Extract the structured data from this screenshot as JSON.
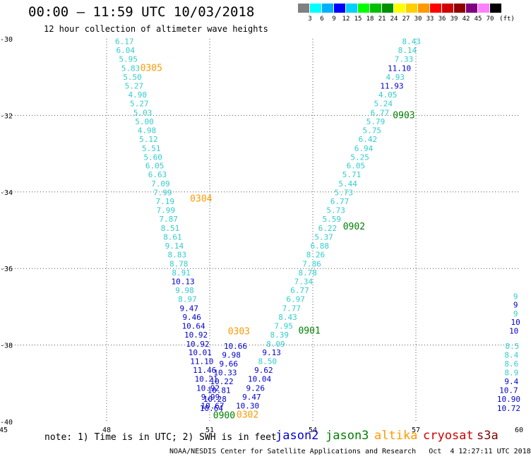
{
  "title": "00:00 – 11:59 UTC 10/03/2018",
  "subtitle": "12 hour collection of altimeter wave heights",
  "note": "note: 1) Time is in UTC; 2) SWH is in feet",
  "credits": "NOAA/NESDIS Center for Satellite Applications and Research   Oct  4 12:27:11 UTC 2018",
  "colors": {
    "jason2": "#0000d0",
    "jason2_light": "#33cccc",
    "jason3": "#008000",
    "altika": "#ff9900",
    "cryosat": "#cc0000",
    "s3a": "#800000"
  },
  "satellites": [
    {
      "name": "jason2",
      "color": "#0000d0"
    },
    {
      "name": "jason3",
      "color": "#008000"
    },
    {
      "name": "altika",
      "color": "#ff9900"
    },
    {
      "name": "cryosat",
      "color": "#cc0000"
    },
    {
      "name": "s3a",
      "color": "#800000"
    }
  ],
  "color_scale": {
    "unit": "(ft)",
    "labels": [
      "3",
      "6",
      "9",
      "12",
      "15",
      "18",
      "21",
      "24",
      "27",
      "30",
      "33",
      "36",
      "39",
      "42",
      "45",
      "70"
    ],
    "colors": [
      "#808080",
      "#00ffff",
      "#00b0ff",
      "#0000ff",
      "#00d0ff",
      "#00ff00",
      "#00c000",
      "#009000",
      "#ffff00",
      "#ffd000",
      "#ff9900",
      "#ff0000",
      "#d00000",
      "#900000",
      "#800080",
      "#ff80ff",
      "#000000"
    ]
  },
  "chart_data": {
    "type": "scatter",
    "xlim": [
      45,
      60
    ],
    "ylim": [
      -40,
      -30
    ],
    "x_ticks": [
      "45",
      "48",
      "51",
      "54",
      "57",
      "60"
    ],
    "y_ticks": [
      "-30",
      "-32",
      "-34",
      "-36",
      "-38",
      "-40"
    ],
    "grid": true,
    "tracks": [
      {
        "satellite": "jason2",
        "points": [
          {
            "x": 48.52,
            "y": -30.14,
            "v": "6.17",
            "c": "#33cccc"
          },
          {
            "x": 48.55,
            "y": -30.37,
            "v": "6.04",
            "c": "#33cccc"
          },
          {
            "x": 48.63,
            "y": -30.6,
            "v": "5.95",
            "c": "#33cccc"
          },
          {
            "x": 48.7,
            "y": -30.84,
            "v": "5.83",
            "c": "#33cccc"
          },
          {
            "x": 48.75,
            "y": -31.07,
            "v": "5.50",
            "c": "#33cccc"
          },
          {
            "x": 48.8,
            "y": -31.3,
            "v": "5.27",
            "c": "#33cccc"
          },
          {
            "x": 48.9,
            "y": -31.53,
            "v": "4.90",
            "c": "#33cccc"
          },
          {
            "x": 48.95,
            "y": -31.76,
            "v": "5.27",
            "c": "#33cccc"
          },
          {
            "x": 49.05,
            "y": -32.0,
            "v": "5.03",
            "c": "#33cccc"
          },
          {
            "x": 49.1,
            "y": -32.23,
            "v": "5.00",
            "c": "#33cccc"
          },
          {
            "x": 49.17,
            "y": -32.46,
            "v": "4.98",
            "c": "#33cccc"
          },
          {
            "x": 49.22,
            "y": -32.69,
            "v": "5.12",
            "c": "#33cccc"
          },
          {
            "x": 49.3,
            "y": -32.93,
            "v": "5.51",
            "c": "#33cccc"
          },
          {
            "x": 49.35,
            "y": -33.16,
            "v": "5.60",
            "c": "#33cccc"
          },
          {
            "x": 49.4,
            "y": -33.39,
            "v": "6.05",
            "c": "#33cccc"
          },
          {
            "x": 49.48,
            "y": -33.62,
            "v": "6.63",
            "c": "#33cccc"
          },
          {
            "x": 49.57,
            "y": -33.86,
            "v": "7.09",
            "c": "#33cccc"
          },
          {
            "x": 49.63,
            "y": -34.09,
            "v": "7.99",
            "c": "#33cccc"
          },
          {
            "x": 49.7,
            "y": -34.32,
            "v": "7.19",
            "c": "#33cccc"
          },
          {
            "x": 49.72,
            "y": -34.55,
            "v": "7.99",
            "c": "#33cccc"
          },
          {
            "x": 49.8,
            "y": -34.78,
            "v": "7.87",
            "c": "#33cccc"
          },
          {
            "x": 49.85,
            "y": -35.02,
            "v": "8.51",
            "c": "#33cccc"
          },
          {
            "x": 49.92,
            "y": -35.25,
            "v": "8.61",
            "c": "#33cccc"
          },
          {
            "x": 49.97,
            "y": -35.48,
            "v": "9.14",
            "c": "#33cccc"
          },
          {
            "x": 50.05,
            "y": -35.71,
            "v": "8.83",
            "c": "#33cccc"
          },
          {
            "x": 50.1,
            "y": -35.95,
            "v": "8.78",
            "c": "#33cccc"
          },
          {
            "x": 50.17,
            "y": -36.18,
            "v": "8.91",
            "c": "#33cccc"
          },
          {
            "x": 50.22,
            "y": -36.41,
            "v": "10.13",
            "c": "#0000d0"
          },
          {
            "x": 50.27,
            "y": -36.64,
            "v": "9.98",
            "c": "#33cccc"
          },
          {
            "x": 50.35,
            "y": -36.87,
            "v": "8.97",
            "c": "#33cccc"
          },
          {
            "x": 50.4,
            "y": -37.11,
            "v": "9.47",
            "c": "#0000d0"
          },
          {
            "x": 50.48,
            "y": -37.34,
            "v": "9.46",
            "c": "#0000d0"
          },
          {
            "x": 50.53,
            "y": -37.57,
            "v": "10.64",
            "c": "#0000d0"
          },
          {
            "x": 50.6,
            "y": -37.8,
            "v": "10.92",
            "c": "#0000d0"
          },
          {
            "x": 50.65,
            "y": -38.04,
            "v": "10.92",
            "c": "#0000d0"
          },
          {
            "x": 50.72,
            "y": -38.27,
            "v": "10.01",
            "c": "#0000d0"
          },
          {
            "x": 50.77,
            "y": -38.5,
            "v": "11.10",
            "c": "#0000d0"
          },
          {
            "x": 50.85,
            "y": -38.73,
            "v": "11.46",
            "c": "#0000d0"
          },
          {
            "x": 50.9,
            "y": -38.96,
            "v": "10.21",
            "c": "#0000d0"
          },
          {
            "x": 50.95,
            "y": -39.2,
            "v": "10.92",
            "c": "#0000d0"
          },
          {
            "x": 51.02,
            "y": -39.43,
            "v": "9.99",
            "c": "#0000d0"
          },
          {
            "x": 51.08,
            "y": -39.66,
            "v": "10.67",
            "c": "#0000d0"
          }
        ]
      },
      {
        "satellite": "jason3",
        "points": [
          {
            "x": 56.87,
            "y": -30.14,
            "v": "8.43",
            "c": "#33cccc"
          },
          {
            "x": 56.75,
            "y": -30.37,
            "v": "8.14",
            "c": "#33cccc"
          },
          {
            "x": 56.65,
            "y": -30.6,
            "v": "7.33",
            "c": "#33cccc"
          },
          {
            "x": 56.52,
            "y": -30.84,
            "v": "11.10",
            "c": "#0000d0"
          },
          {
            "x": 56.4,
            "y": -31.07,
            "v": "4.93",
            "c": "#33cccc"
          },
          {
            "x": 56.3,
            "y": -31.3,
            "v": "11.93",
            "c": "#0000d0"
          },
          {
            "x": 56.18,
            "y": -31.53,
            "v": "4.05",
            "c": "#33cccc"
          },
          {
            "x": 56.05,
            "y": -31.76,
            "v": "5.24",
            "c": "#33cccc"
          },
          {
            "x": 55.95,
            "y": -32.0,
            "v": "6.77",
            "c": "#33cccc"
          },
          {
            "x": 55.83,
            "y": -32.23,
            "v": "5.79",
            "c": "#33cccc"
          },
          {
            "x": 55.72,
            "y": -32.46,
            "v": "5.75",
            "c": "#33cccc"
          },
          {
            "x": 55.6,
            "y": -32.69,
            "v": "6.42",
            "c": "#33cccc"
          },
          {
            "x": 55.48,
            "y": -32.93,
            "v": "6.94",
            "c": "#33cccc"
          },
          {
            "x": 55.37,
            "y": -33.16,
            "v": "5.25",
            "c": "#33cccc"
          },
          {
            "x": 55.25,
            "y": -33.39,
            "v": "6.05",
            "c": "#33cccc"
          },
          {
            "x": 55.13,
            "y": -33.62,
            "v": "5.71",
            "c": "#33cccc"
          },
          {
            "x": 55.02,
            "y": -33.86,
            "v": "5.44",
            "c": "#33cccc"
          },
          {
            "x": 54.9,
            "y": -34.09,
            "v": "5.73",
            "c": "#33cccc"
          },
          {
            "x": 54.78,
            "y": -34.32,
            "v": "6.77",
            "c": "#33cccc"
          },
          {
            "x": 54.67,
            "y": -34.55,
            "v": "5.73",
            "c": "#33cccc"
          },
          {
            "x": 54.55,
            "y": -34.78,
            "v": "5.59",
            "c": "#33cccc"
          },
          {
            "x": 54.43,
            "y": -35.02,
            "v": "6.22",
            "c": "#33cccc"
          },
          {
            "x": 54.32,
            "y": -35.25,
            "v": "5.37",
            "c": "#33cccc"
          },
          {
            "x": 54.2,
            "y": -35.48,
            "v": "6.88",
            "c": "#33cccc"
          },
          {
            "x": 54.08,
            "y": -35.71,
            "v": "8.26",
            "c": "#33cccc"
          },
          {
            "x": 53.97,
            "y": -35.95,
            "v": "7.86",
            "c": "#33cccc"
          },
          {
            "x": 53.85,
            "y": -36.18,
            "v": "8.78",
            "c": "#33cccc"
          },
          {
            "x": 53.73,
            "y": -36.41,
            "v": "7.34",
            "c": "#33cccc"
          },
          {
            "x": 53.62,
            "y": -36.64,
            "v": "6.77",
            "c": "#33cccc"
          },
          {
            "x": 53.5,
            "y": -36.87,
            "v": "6.97",
            "c": "#33cccc"
          },
          {
            "x": 53.38,
            "y": -37.11,
            "v": "7.77",
            "c": "#33cccc"
          },
          {
            "x": 53.27,
            "y": -37.34,
            "v": "8.43",
            "c": "#33cccc"
          },
          {
            "x": 53.15,
            "y": -37.57,
            "v": "7.95",
            "c": "#33cccc"
          },
          {
            "x": 53.03,
            "y": -37.8,
            "v": "8.39",
            "c": "#33cccc"
          },
          {
            "x": 52.92,
            "y": -38.04,
            "v": "8.09",
            "c": "#33cccc"
          },
          {
            "x": 52.8,
            "y": -38.27,
            "v": "9.13",
            "c": "#0000d0"
          },
          {
            "x": 52.68,
            "y": -38.5,
            "v": "8.50",
            "c": "#33cccc"
          },
          {
            "x": 52.57,
            "y": -38.73,
            "v": "9.62",
            "c": "#0000d0"
          },
          {
            "x": 52.45,
            "y": -38.96,
            "v": "10.04",
            "c": "#0000d0"
          },
          {
            "x": 52.33,
            "y": -39.2,
            "v": "9.26",
            "c": "#0000d0"
          },
          {
            "x": 52.22,
            "y": -39.43,
            "v": "9.47",
            "c": "#0000d0"
          },
          {
            "x": 52.1,
            "y": -39.66,
            "v": "10.30",
            "c": "#0000d0"
          }
        ]
      }
    ],
    "extra_points": [
      {
        "x": 51.75,
        "y": -38.1,
        "v": "10.66",
        "c": "#0000d0"
      },
      {
        "x": 51.63,
        "y": -38.33,
        "v": "9.98",
        "c": "#0000d0"
      },
      {
        "x": 51.55,
        "y": -38.56,
        "v": "9.66",
        "c": "#0000d0"
      },
      {
        "x": 51.45,
        "y": -38.79,
        "v": "10.33",
        "c": "#0000d0"
      },
      {
        "x": 51.35,
        "y": -39.02,
        "v": "10.22",
        "c": "#0000d0"
      },
      {
        "x": 51.27,
        "y": -39.25,
        "v": "10.81",
        "c": "#0000d0"
      },
      {
        "x": 51.15,
        "y": -39.48,
        "v": "10.28",
        "c": "#0000d0"
      },
      {
        "x": 51.05,
        "y": -39.72,
        "v": "10.64",
        "c": "#0000d0"
      },
      {
        "x": 59.9,
        "y": -36.8,
        "v": "9",
        "c": "#33cccc"
      },
      {
        "x": 59.9,
        "y": -37.02,
        "v": "9",
        "c": "#0000d0"
      },
      {
        "x": 59.9,
        "y": -37.25,
        "v": "9",
        "c": "#33cccc"
      },
      {
        "x": 59.9,
        "y": -37.47,
        "v": "10",
        "c": "#0000d0"
      },
      {
        "x": 59.85,
        "y": -37.7,
        "v": "10",
        "c": "#0000d0"
      },
      {
        "x": 59.8,
        "y": -38.1,
        "v": "8.5",
        "c": "#33cccc"
      },
      {
        "x": 59.78,
        "y": -38.33,
        "v": "8.4",
        "c": "#33cccc"
      },
      {
        "x": 59.78,
        "y": -38.56,
        "v": "8.6",
        "c": "#33cccc"
      },
      {
        "x": 59.78,
        "y": -38.79,
        "v": "8.9",
        "c": "#33cccc"
      },
      {
        "x": 59.78,
        "y": -39.02,
        "v": "9.4",
        "c": "#0000d0"
      },
      {
        "x": 59.7,
        "y": -39.25,
        "v": "10.7",
        "c": "#0000d0"
      },
      {
        "x": 59.7,
        "y": -39.48,
        "v": "10.90",
        "c": "#0000d0"
      },
      {
        "x": 59.7,
        "y": -39.72,
        "v": "10.72",
        "c": "#0000d0"
      }
    ],
    "time_labels": [
      {
        "x": 49.3,
        "y": -30.84,
        "t": "0305",
        "c": "#ff9900"
      },
      {
        "x": 50.75,
        "y": -34.25,
        "t": "0304",
        "c": "#ff9900"
      },
      {
        "x": 51.85,
        "y": -37.72,
        "t": "0303",
        "c": "#ff9900"
      },
      {
        "x": 52.1,
        "y": -39.9,
        "t": "0302",
        "c": "#ff9900"
      },
      {
        "x": 51.42,
        "y": -39.92,
        "t": "0900",
        "c": "#008000"
      },
      {
        "x": 56.65,
        "y": -32.08,
        "t": "0903",
        "c": "#008000"
      },
      {
        "x": 55.2,
        "y": -34.98,
        "t": "0902",
        "c": "#008000"
      },
      {
        "x": 53.9,
        "y": -37.7,
        "t": "0901",
        "c": "#008000"
      }
    ]
  }
}
